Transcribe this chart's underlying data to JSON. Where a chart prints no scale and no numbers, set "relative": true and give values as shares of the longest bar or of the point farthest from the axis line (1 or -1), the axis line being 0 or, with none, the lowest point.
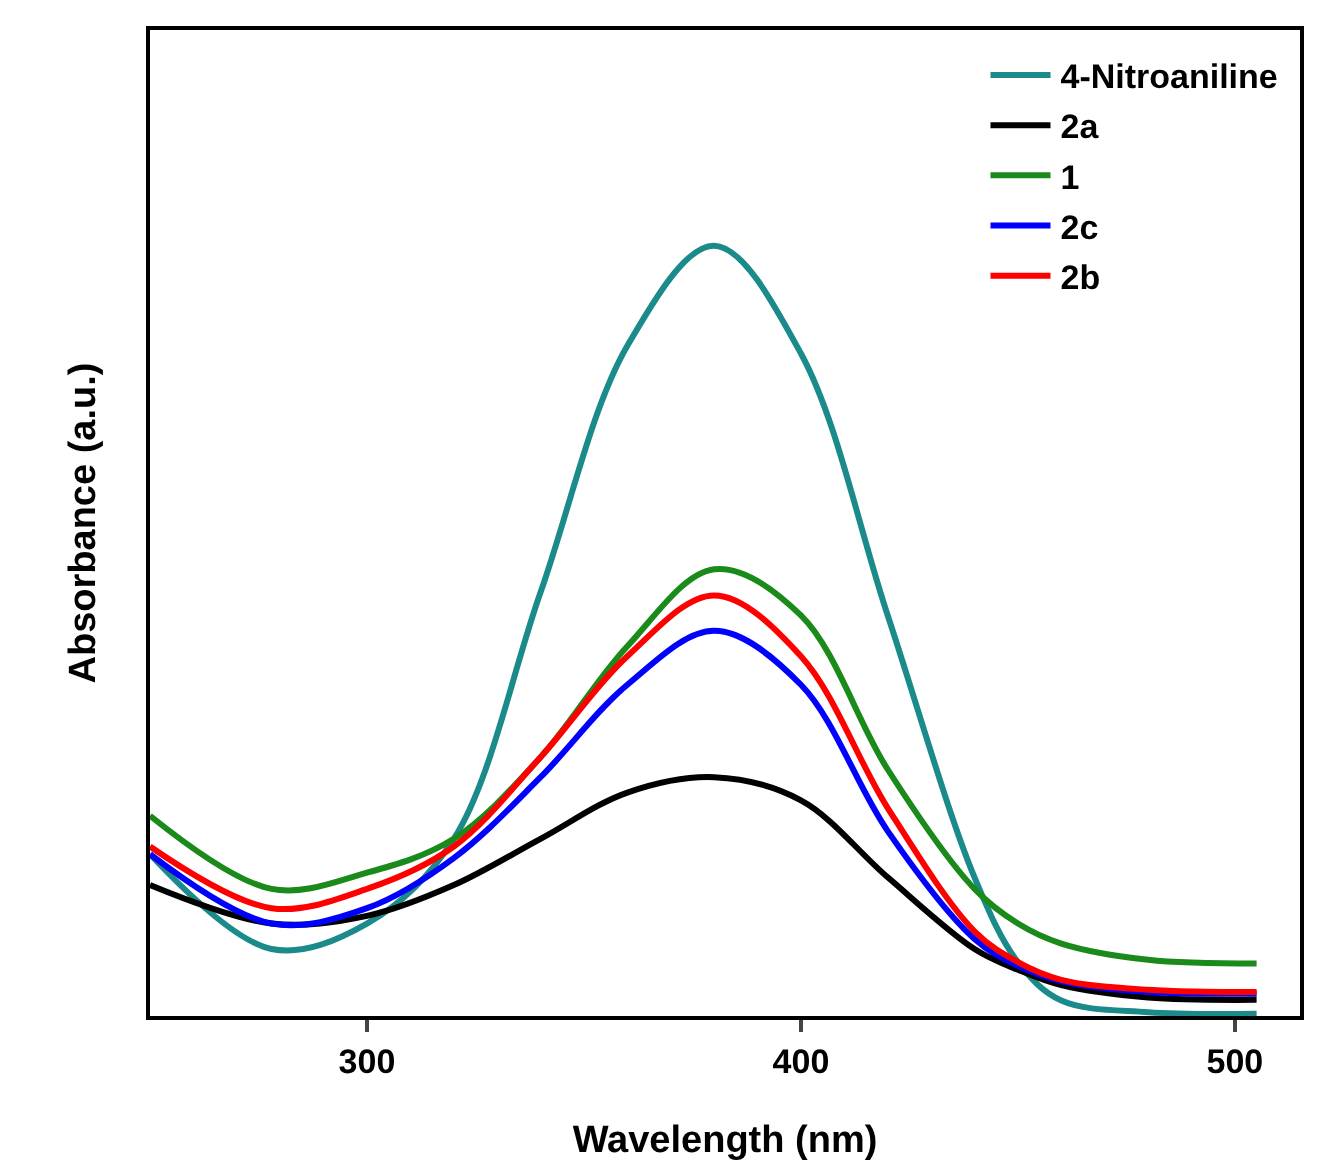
{
  "chart_data": {
    "type": "line",
    "xlabel": "Wavelength (nm)",
    "ylabel": "Absorbance (a.u.)",
    "relative": true,
    "tick_labels": "x",
    "xlim": [
      250,
      515
    ],
    "xticks": [
      300,
      400,
      500
    ],
    "legend": "top right",
    "grid": false,
    "marker": "none",
    "line_style": "solid",
    "x": [
      250,
      278,
      300,
      320,
      340,
      360,
      380,
      400,
      420,
      440,
      450,
      460,
      480,
      505
    ],
    "series": [
      {
        "name": "4-Nitroaniline",
        "color": "#1a8a8a",
        "values": [
          0.21,
          0.087,
          0.12,
          0.23,
          0.55,
          0.87,
          1,
          0.86,
          0.52,
          0.18,
          0.07,
          0.02,
          0.005,
          0.003
        ]
      },
      {
        "name": "2a",
        "color": "#000000",
        "values": [
          0.17,
          0.12,
          0.13,
          0.17,
          0.23,
          0.29,
          0.31,
          0.28,
          0.18,
          0.087,
          0.06,
          0.04,
          0.024,
          0.021
        ]
      },
      {
        "name": "1",
        "color": "#1a8a1a",
        "values": [
          0.26,
          0.165,
          0.186,
          0.23,
          0.336,
          0.48,
          0.58,
          0.52,
          0.32,
          0.165,
          0.12,
          0.094,
          0.073,
          0.068
        ]
      },
      {
        "name": "2c",
        "color": "#0000ff",
        "values": [
          0.21,
          0.12,
          0.14,
          0.205,
          0.31,
          0.43,
          0.5,
          0.43,
          0.24,
          0.1,
          0.065,
          0.045,
          0.031,
          0.029
        ]
      },
      {
        "name": "2b",
        "color": "#ff0000",
        "values": [
          0.22,
          0.14,
          0.165,
          0.22,
          0.336,
          0.467,
          0.546,
          0.467,
          0.27,
          0.11,
          0.07,
          0.047,
          0.034,
          0.031
        ]
      }
    ]
  }
}
